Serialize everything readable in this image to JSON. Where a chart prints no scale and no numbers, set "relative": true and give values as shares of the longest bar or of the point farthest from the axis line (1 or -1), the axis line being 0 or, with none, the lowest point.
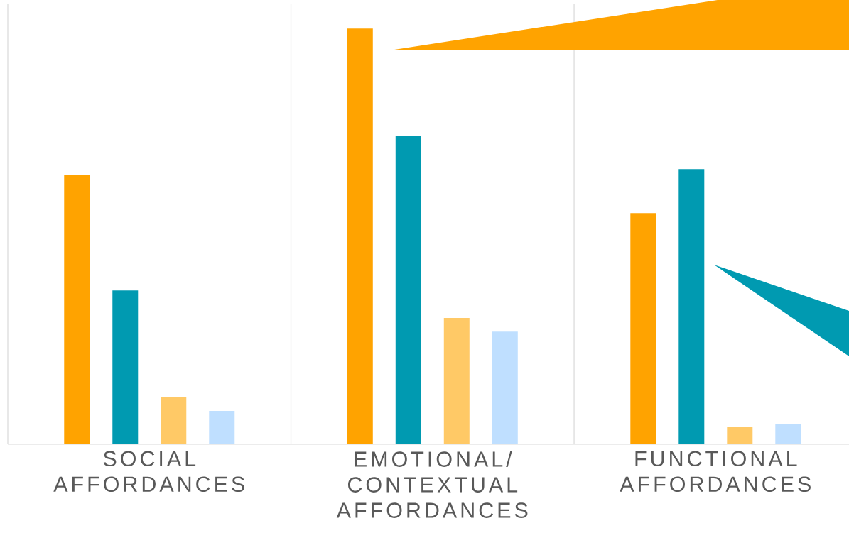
{
  "chart_data": {
    "type": "bar",
    "relative": true,
    "grid": "x",
    "categories": [
      "SOCIAL AFFORDANCES",
      "EMOTIONAL/ CONTEXTUAL AFFORDANCES",
      "FUNCTIONAL AFFORDANCES"
    ],
    "series": [
      {
        "color": "#ffa300",
        "values": [
          0.648,
          1.0,
          0.556
        ]
      },
      {
        "color": "#009ab1",
        "values": [
          0.37,
          0.741,
          0.662
        ]
      },
      {
        "color": "#ffc966",
        "values": [
          0.113,
          0.304,
          0.041
        ]
      },
      {
        "color": "#bfdfff",
        "values": [
          0.08,
          0.271,
          0.048
        ]
      }
    ]
  }
}
